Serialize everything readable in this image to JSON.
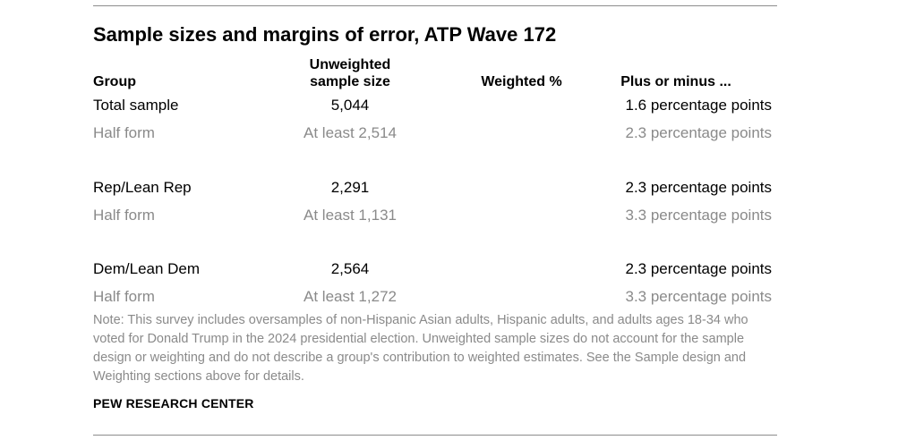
{
  "title": "Sample sizes and margins of error, ATP Wave 172",
  "headers": {
    "group": "Group",
    "unweighted_line1": "Unweighted",
    "unweighted_line2": "sample size",
    "weighted": "Weighted %",
    "plus_minus": "Plus or minus ..."
  },
  "rows": [
    {
      "group": "Total sample",
      "size": "5,044",
      "weighted": "",
      "moe": "1.6 percentage points",
      "style": "main"
    },
    {
      "group": "Half form",
      "size": "At least 2,514",
      "weighted": "",
      "moe": "2.3 percentage points",
      "style": "sub"
    },
    {
      "group": "Rep/Lean Rep",
      "size": "2,291",
      "weighted": "",
      "moe": "2.3 percentage points",
      "style": "main"
    },
    {
      "group": "Half form",
      "size": "At least 1,131",
      "weighted": "",
      "moe": "3.3 percentage points",
      "style": "sub"
    },
    {
      "group": "Dem/Lean Dem",
      "size": "2,564",
      "weighted": "",
      "moe": "2.3 percentage points",
      "style": "main"
    },
    {
      "group": "Half form",
      "size": "At least 1,272",
      "weighted": "",
      "moe": "3.3 percentage points",
      "style": "sub"
    }
  ],
  "note": "Note: This survey includes oversamples of non-Hispanic Asian adults, Hispanic adults, and adults ages 18-34 who voted for Donald Trump in the 2024 presidential election. Unweighted sample sizes do not account for the sample design or weighting and do not describe a group's contribution to weighted estimates. See the Sample design and Weighting sections above for details.",
  "source": "PEW RESEARCH CENTER"
}
